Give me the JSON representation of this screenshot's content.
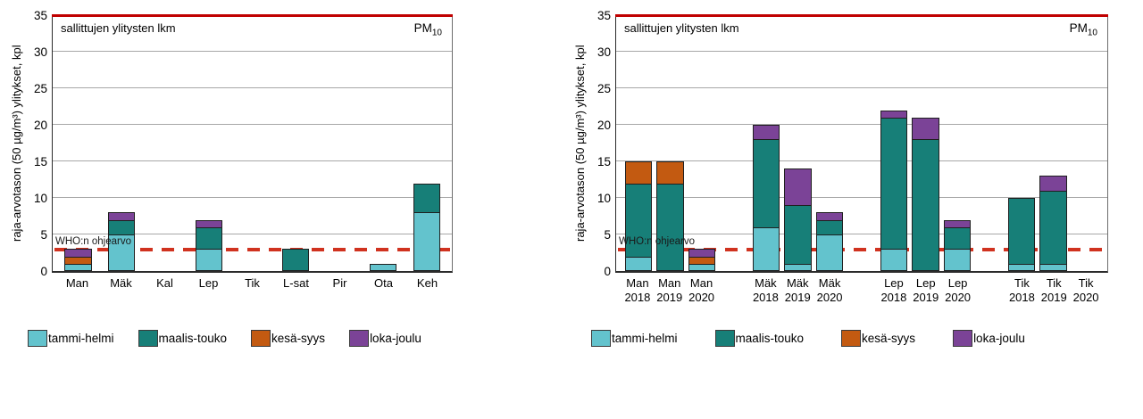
{
  "chart_data": [
    {
      "type": "bar",
      "stacked": true,
      "inner_title": "sallittujen ylitysten lkm",
      "pm_label": {
        "main": "PM",
        "sub": "10"
      },
      "ylabel": "raja-arvotason (50 µg/m³) ylitykset, kpl",
      "ylim": [
        0,
        35
      ],
      "yticks": [
        0,
        5,
        10,
        15,
        20,
        25,
        30,
        35
      ],
      "grid": true,
      "legend_position": "bottom",
      "allowed_limit_line": {
        "value": 35,
        "color": "#c00000"
      },
      "who_line": {
        "label": "WHO:n ohjearvo",
        "value": 3,
        "color": "#d0321f"
      },
      "group_sizes": [
        9
      ],
      "categories": [
        [
          "Man"
        ],
        [
          "Mäk"
        ],
        [
          "Kal"
        ],
        [
          "Lep"
        ],
        [
          "Tik"
        ],
        [
          "L-sat"
        ],
        [
          "Pir"
        ],
        [
          "Ota"
        ],
        [
          "Keh"
        ]
      ],
      "series": [
        {
          "name": "tammi-helmi",
          "color": "#63c3cd",
          "values": [
            1,
            5,
            0,
            3,
            0,
            0,
            0,
            1,
            8
          ]
        },
        {
          "name": "maalis-touko",
          "color": "#177f78",
          "values": [
            0,
            2,
            0,
            3,
            0,
            3,
            0,
            0,
            4
          ]
        },
        {
          "name": "kesä-syys",
          "color": "#c35a11",
          "values": [
            1,
            0,
            0,
            0,
            0,
            0,
            0,
            0,
            0
          ]
        },
        {
          "name": "loka-joulu",
          "color": "#7b4397",
          "values": [
            1,
            1,
            0,
            1,
            0,
            0,
            0,
            0,
            0
          ]
        }
      ]
    },
    {
      "type": "bar",
      "stacked": true,
      "inner_title": "sallittujen ylitysten lkm",
      "pm_label": {
        "main": "PM",
        "sub": "10"
      },
      "ylabel": "raja-arvotason (50 µg/m³) ylitykset, kpl",
      "ylim": [
        0,
        35
      ],
      "yticks": [
        0,
        5,
        10,
        15,
        20,
        25,
        30,
        35
      ],
      "grid": true,
      "legend_position": "bottom",
      "allowed_limit_line": {
        "value": 35,
        "color": "#c00000"
      },
      "who_line": {
        "label": "WHO:n ohjearvo",
        "value": 3,
        "color": "#d0321f"
      },
      "group_sizes": [
        3,
        3,
        3,
        3
      ],
      "categories": [
        [
          "Man",
          "2018"
        ],
        [
          "Man",
          "2019"
        ],
        [
          "Man",
          "2020"
        ],
        [
          "Mäk",
          "2018"
        ],
        [
          "Mäk",
          "2019"
        ],
        [
          "Mäk",
          "2020"
        ],
        [
          "Lep",
          "2018"
        ],
        [
          "Lep",
          "2019"
        ],
        [
          "Lep",
          "2020"
        ],
        [
          "Tik",
          "2018"
        ],
        [
          "Tik",
          "2019"
        ],
        [
          "Tik",
          "2020"
        ]
      ],
      "series": [
        {
          "name": "tammi-helmi",
          "color": "#63c3cd",
          "values": [
            2,
            0,
            1,
            6,
            1,
            5,
            3,
            0,
            3,
            1,
            1,
            0
          ]
        },
        {
          "name": "maalis-touko",
          "color": "#177f78",
          "values": [
            10,
            12,
            0,
            12,
            8,
            2,
            18,
            18,
            3,
            9,
            10,
            0
          ]
        },
        {
          "name": "kesä-syys",
          "color": "#c35a11",
          "values": [
            3,
            3,
            1,
            0,
            0,
            0,
            0,
            0,
            0,
            0,
            0,
            0
          ]
        },
        {
          "name": "loka-joulu",
          "color": "#7b4397",
          "values": [
            0,
            0,
            1,
            2,
            5,
            1,
            1,
            3,
            1,
            0,
            2,
            0
          ]
        }
      ]
    }
  ]
}
